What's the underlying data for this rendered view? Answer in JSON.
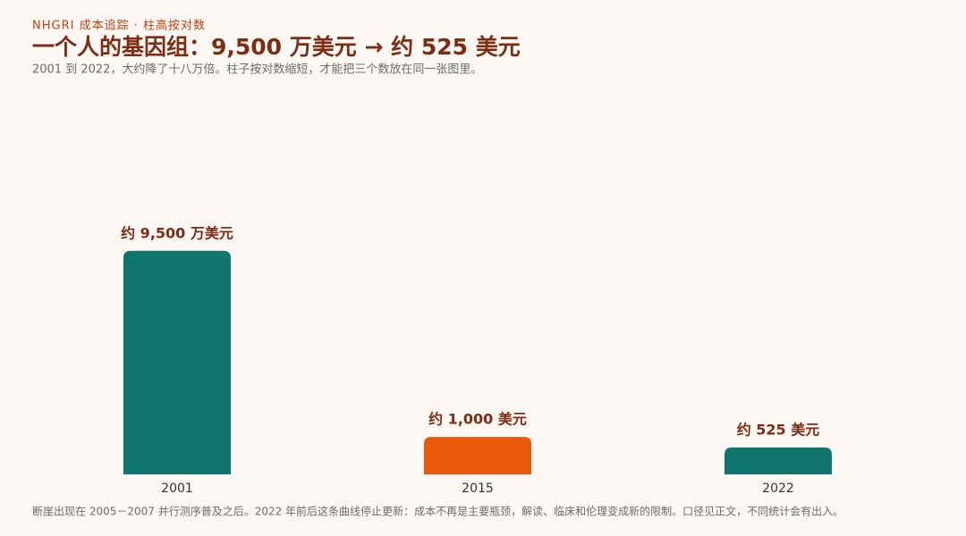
{
  "chart_data": {
    "type": "bar",
    "kicker": "NHGRI 成本追踪 · 柱高按对数",
    "title": "一个人的基因组：9,500 万美元 → 约 525 美元",
    "subtitle": "2001 到 2022，大约降了十八万倍。柱子按对数缩短，才能把三个数放在同一张图里。",
    "footnote": "断崖出现在 2005－2007 并行测序普及之后。2022 年前后这条曲线停止更新：成本不再是主要瓶颈，解读、临床和伦理变成新的限制。口径见正文，不同统计会有出入。",
    "categories": [
      "2001",
      "2015",
      "2022"
    ],
    "values": [
      95000000,
      1000,
      525
    ],
    "value_labels": [
      "约 9,500 万美元",
      "约 1,000 美元",
      "约 525 美元"
    ],
    "colors": [
      "#0f766e",
      "#ea580c",
      "#0f766e"
    ],
    "log_scale": true,
    "ylim": [
      100,
      1000000000
    ]
  }
}
